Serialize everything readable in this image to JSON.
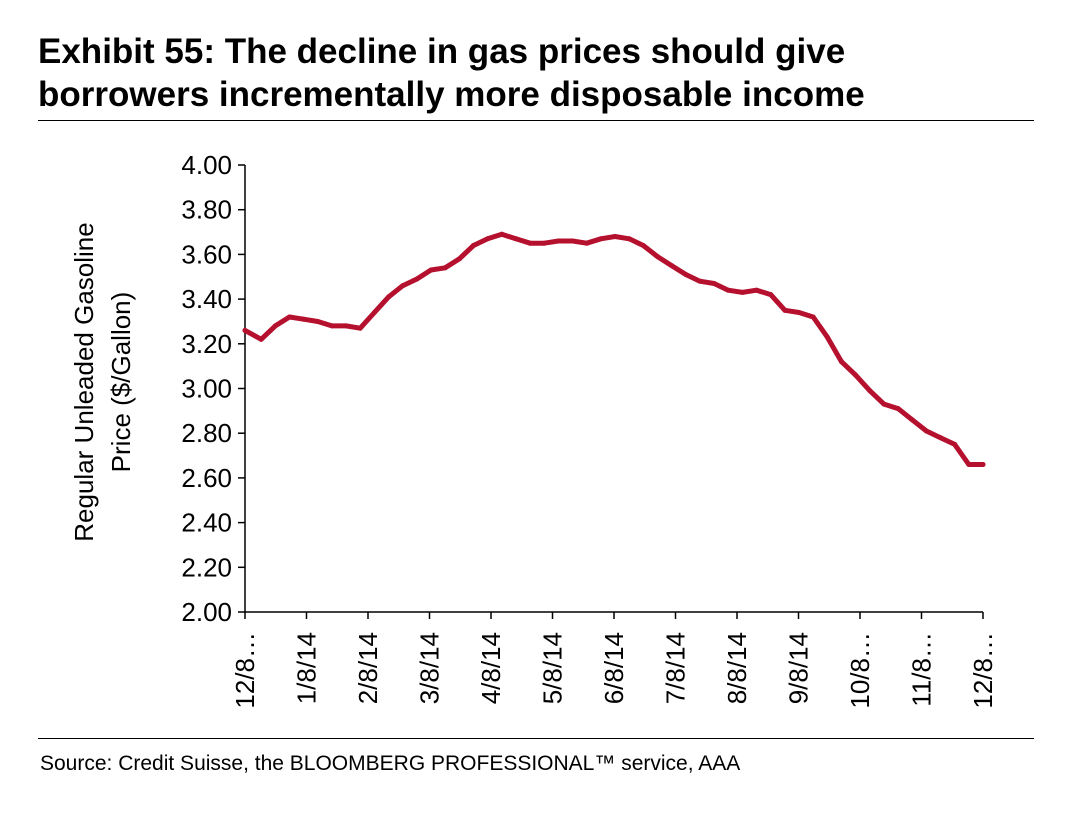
{
  "title_line1": "Exhibit 55: The decline in gas prices should give",
  "title_line2": "borrowers incrementally more disposable income",
  "source": "Source: Credit Suisse, the BLOOMBERG PROFESSIONAL™ service, AAA",
  "chart_data": {
    "type": "line",
    "ylabel_line1": "Regular Unleaded Gasoline",
    "ylabel_line2": "Price ($/Gallon)",
    "ylim": [
      2.0,
      4.0
    ],
    "yticks": [
      "4.00",
      "3.80",
      "3.60",
      "3.40",
      "3.20",
      "3.00",
      "2.80",
      "2.60",
      "2.40",
      "2.20",
      "2.00"
    ],
    "xtick_labels": [
      "12/8…",
      "1/8/14",
      "2/8/14",
      "3/8/14",
      "4/8/14",
      "5/8/14",
      "6/8/14",
      "7/8/14",
      "8/8/14",
      "9/8/14",
      "10/8…",
      "11/8…",
      "12/8…"
    ],
    "x_range": [
      "2013-12-08",
      "2014-12-08"
    ],
    "grid": false,
    "line_color": "#B5112E",
    "series": [
      {
        "x": [
          "2013-12-08",
          "2013-12-16",
          "2013-12-23",
          "2013-12-30",
          "2014-01-06",
          "2014-01-13",
          "2014-01-20",
          "2014-01-27",
          "2014-02-03",
          "2014-02-10",
          "2014-02-17",
          "2014-02-24",
          "2014-03-03",
          "2014-03-10",
          "2014-03-17",
          "2014-03-24",
          "2014-03-31",
          "2014-04-07",
          "2014-04-14",
          "2014-04-21",
          "2014-04-28",
          "2014-05-05",
          "2014-05-12",
          "2014-05-19",
          "2014-05-26",
          "2014-06-02",
          "2014-06-09",
          "2014-06-16",
          "2014-06-23",
          "2014-06-30",
          "2014-07-07",
          "2014-07-14",
          "2014-07-21",
          "2014-07-28",
          "2014-08-04",
          "2014-08-11",
          "2014-08-18",
          "2014-08-25",
          "2014-09-01",
          "2014-09-08",
          "2014-09-15",
          "2014-09-22",
          "2014-09-29",
          "2014-10-06",
          "2014-10-13",
          "2014-10-20",
          "2014-10-27",
          "2014-11-03",
          "2014-11-10",
          "2014-11-17",
          "2014-11-24",
          "2014-12-01",
          "2014-12-08"
        ],
        "y": [
          3.26,
          3.22,
          3.28,
          3.32,
          3.31,
          3.3,
          3.28,
          3.28,
          3.27,
          3.34,
          3.41,
          3.46,
          3.49,
          3.53,
          3.54,
          3.58,
          3.64,
          3.67,
          3.69,
          3.67,
          3.65,
          3.65,
          3.66,
          3.66,
          3.65,
          3.67,
          3.68,
          3.67,
          3.64,
          3.59,
          3.55,
          3.51,
          3.48,
          3.47,
          3.44,
          3.43,
          3.44,
          3.42,
          3.35,
          3.34,
          3.32,
          3.23,
          3.12,
          3.06,
          2.99,
          2.93,
          2.91,
          2.86,
          2.81,
          2.78,
          2.75,
          2.66,
          2.66
        ]
      }
    ]
  }
}
